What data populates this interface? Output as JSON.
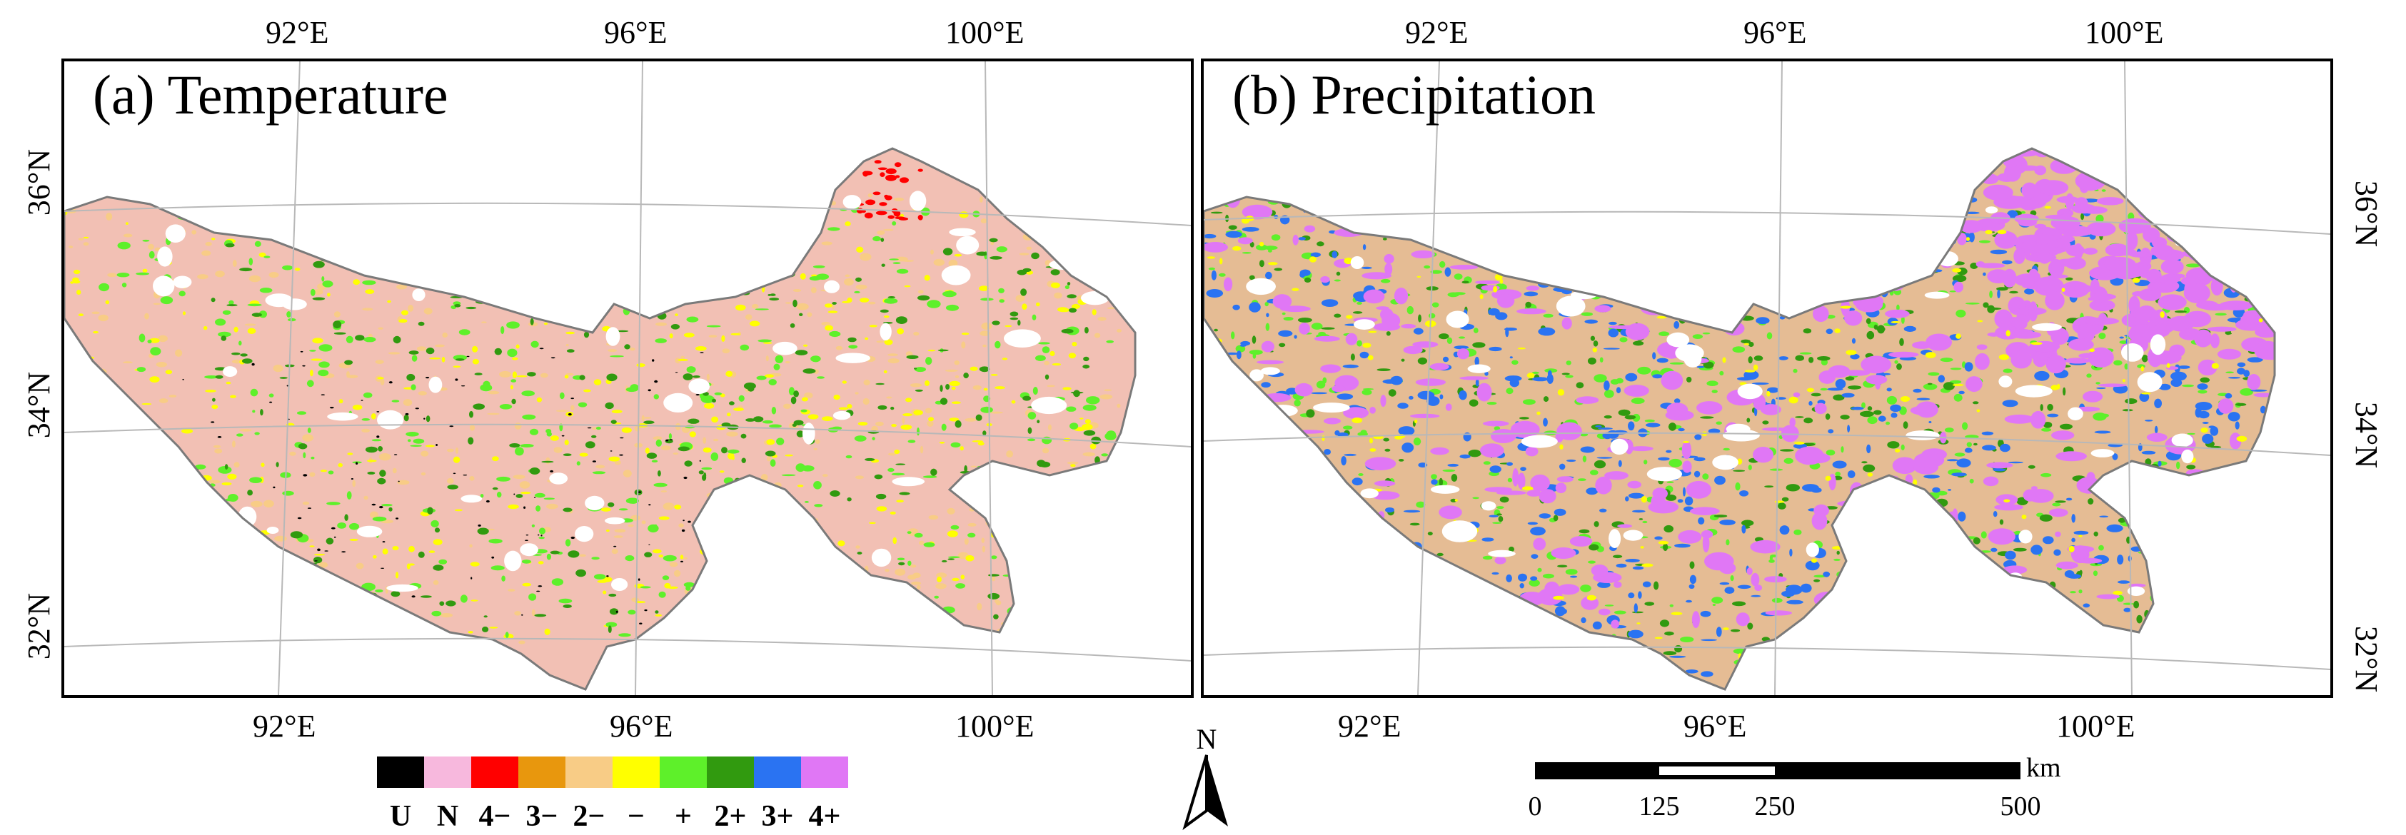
{
  "panels": {
    "a": {
      "title": "(a) Temperature"
    },
    "b": {
      "title": "(b) Precipitation"
    }
  },
  "axes": {
    "top_lon": [
      "92°E",
      "96°E",
      "100°E"
    ],
    "bottom_lon": [
      "92°E",
      "96°E",
      "100°E"
    ],
    "left_lat": [
      "36°N",
      "34°N",
      "32°N"
    ],
    "right_lat": [
      "36°N",
      "34°N",
      "32°N"
    ]
  },
  "legend": {
    "items": [
      {
        "label": "U",
        "color": "#000000"
      },
      {
        "label": "N",
        "color": "#f7b8dd"
      },
      {
        "label": "4−",
        "color": "#ff0000"
      },
      {
        "label": "3−",
        "color": "#e8970d"
      },
      {
        "label": "2−",
        "color": "#f8cc86"
      },
      {
        "label": "−",
        "color": "#ffff00"
      },
      {
        "label": "+",
        "color": "#5ef02a"
      },
      {
        "label": "2+",
        "color": "#319a0f"
      },
      {
        "label": "3+",
        "color": "#2a73f2"
      },
      {
        "label": "4+",
        "color": "#e077f5"
      }
    ]
  },
  "north_arrow": {
    "label": "N"
  },
  "scale_bar": {
    "ticks": [
      "0",
      "125",
      "250",
      "500"
    ],
    "unit": "km"
  },
  "colors": {
    "temp_base": "#f2c0b4",
    "precip_base": "#e5bc94",
    "outline": "#7a7a7a",
    "grid": "#b8b8b8"
  }
}
